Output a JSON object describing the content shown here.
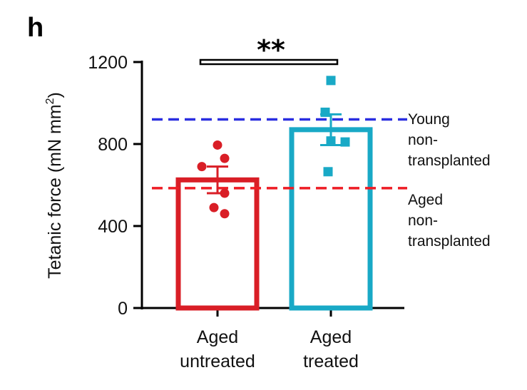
{
  "panel_label": "h",
  "colors": {
    "untreated": "#d91e26",
    "treated": "#19a9c6",
    "young_ref": "#2a2ee0",
    "aged_ref": "#ee1c24",
    "axis": "#000000"
  },
  "chart_data": {
    "type": "bar",
    "title": "",
    "xlabel": "",
    "ylabel_main": "Tetanic force (mN mm",
    "ylabel_sup": "2",
    "ylabel_close": ")",
    "ylim": [
      0,
      1200
    ],
    "yticks": [
      0,
      400,
      800,
      1200
    ],
    "categories": [
      {
        "lines": [
          "Aged",
          "untreated"
        ]
      },
      {
        "lines": [
          "Aged",
          "treated"
        ]
      }
    ],
    "series": [
      {
        "name": "Aged untreated",
        "mean": 625,
        "sem": 65,
        "marker": "circle",
        "color": "#d91e26",
        "points": [
          795,
          730,
          690,
          560,
          490,
          460
        ]
      },
      {
        "name": "Aged treated",
        "mean": 870,
        "sem": 75,
        "marker": "square",
        "color": "#19a9c6",
        "points": [
          1110,
          955,
          815,
          810,
          665
        ]
      }
    ],
    "reference_lines": [
      {
        "name": "Young non-transplanted",
        "value": 920,
        "color": "#2a2ee0",
        "style": "dashed",
        "label_lines": [
          "Young",
          "non-",
          "transplanted"
        ]
      },
      {
        "name": "Aged non-transplanted",
        "value": 585,
        "color": "#ee1c24",
        "style": "dashed",
        "label_lines": [
          "Aged",
          "non-",
          "transplanted"
        ]
      }
    ],
    "significance": {
      "label": "**",
      "between": [
        0,
        1
      ]
    }
  }
}
